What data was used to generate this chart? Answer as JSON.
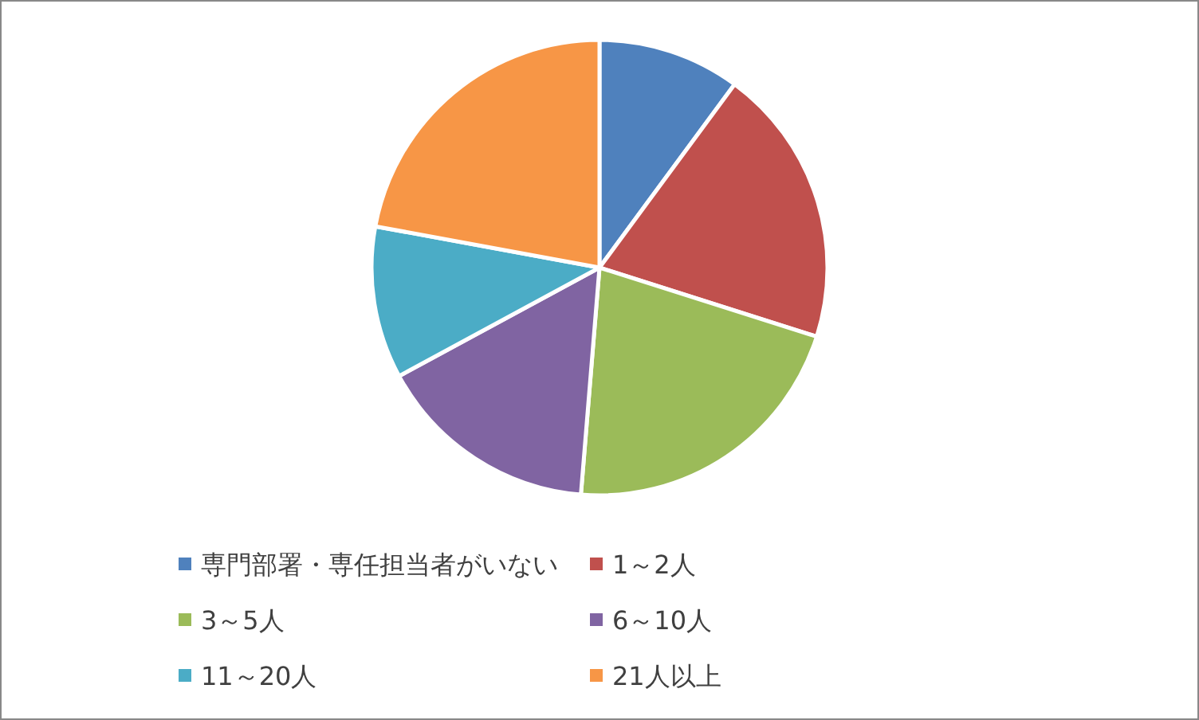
{
  "chart_data": {
    "type": "pie",
    "categories": [
      "専門部署・専任担当者がいない",
      "1～2人",
      "3～5人",
      "6～10人",
      "11～20人",
      "21人以上"
    ],
    "values": [
      10.1,
      19.8,
      21.4,
      15.8,
      10.8,
      22.1
    ],
    "colors": [
      "#4f81bd",
      "#c0504d",
      "#9bbb59",
      "#8064a2",
      "#4bacc6",
      "#f79646"
    ],
    "legend": "bottom"
  }
}
